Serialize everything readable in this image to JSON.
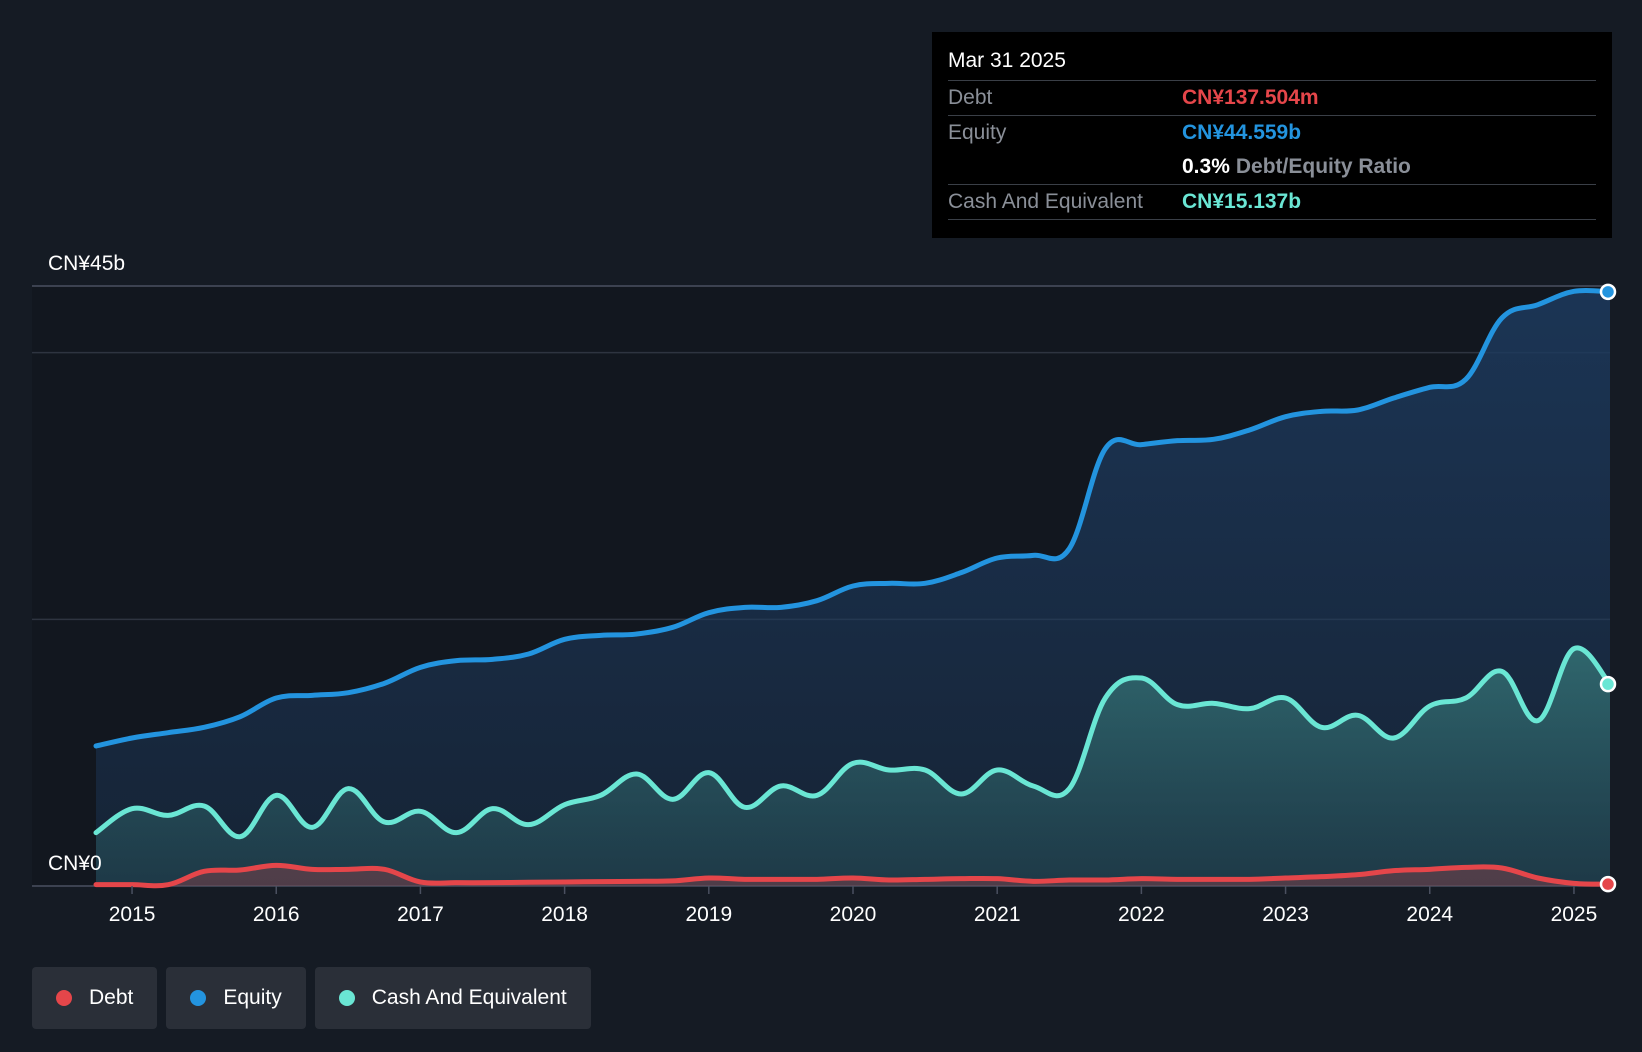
{
  "colors": {
    "background": "#151b24",
    "debt": "#e5464a",
    "equity": "#2394df",
    "cash": "#6ae6d4",
    "grid": "#2e3440"
  },
  "tooltip": {
    "date": "Mar 31 2025",
    "debt_label": "Debt",
    "debt_value": "CN¥137.504m",
    "equity_label": "Equity",
    "equity_value": "CN¥44.559b",
    "ratio_value": "0.3%",
    "ratio_label": "Debt/Equity Ratio",
    "cash_label": "Cash And Equivalent",
    "cash_value": "CN¥15.137b"
  },
  "legend": {
    "debt": "Debt",
    "equity": "Equity",
    "cash": "Cash And Equivalent"
  },
  "chart_data": {
    "type": "area",
    "title": "",
    "xlabel": "",
    "ylabel": "",
    "y_top_label": "CN¥45b",
    "y_bottom_label": "CN¥0",
    "ylim": [
      0,
      45
    ],
    "xlim": [
      2014.75,
      2025.25
    ],
    "x_ticks": [
      "2015",
      "2016",
      "2017",
      "2018",
      "2019",
      "2020",
      "2021",
      "2022",
      "2023",
      "2024",
      "2025"
    ],
    "legend_position": "bottom",
    "series": [
      {
        "name": "Equity",
        "points": [
          [
            2014.75,
            10.5
          ],
          [
            2015.0,
            11.1
          ],
          [
            2015.25,
            11.5
          ],
          [
            2015.5,
            11.9
          ],
          [
            2015.75,
            12.7
          ],
          [
            2016.0,
            14.1
          ],
          [
            2016.25,
            14.3
          ],
          [
            2016.5,
            14.5
          ],
          [
            2016.75,
            15.2
          ],
          [
            2017.0,
            16.4
          ],
          [
            2017.25,
            16.9
          ],
          [
            2017.5,
            17.0
          ],
          [
            2017.75,
            17.4
          ],
          [
            2018.0,
            18.5
          ],
          [
            2018.25,
            18.8
          ],
          [
            2018.5,
            18.9
          ],
          [
            2018.75,
            19.4
          ],
          [
            2019.0,
            20.5
          ],
          [
            2019.25,
            20.9
          ],
          [
            2019.5,
            20.9
          ],
          [
            2019.75,
            21.4
          ],
          [
            2020.0,
            22.5
          ],
          [
            2020.25,
            22.7
          ],
          [
            2020.5,
            22.7
          ],
          [
            2020.75,
            23.5
          ],
          [
            2021.0,
            24.6
          ],
          [
            2021.25,
            24.8
          ],
          [
            2021.5,
            25.3
          ],
          [
            2021.75,
            32.8
          ],
          [
            2022.0,
            33.1
          ],
          [
            2022.25,
            33.4
          ],
          [
            2022.5,
            33.5
          ],
          [
            2022.75,
            34.2
          ],
          [
            2023.0,
            35.2
          ],
          [
            2023.25,
            35.6
          ],
          [
            2023.5,
            35.7
          ],
          [
            2023.75,
            36.6
          ],
          [
            2024.0,
            37.4
          ],
          [
            2024.25,
            38.0
          ],
          [
            2024.5,
            42.6
          ],
          [
            2024.75,
            43.6
          ],
          [
            2025.0,
            44.6
          ],
          [
            2025.25,
            44.56
          ]
        ]
      },
      {
        "name": "Cash And Equivalent",
        "points": [
          [
            2014.75,
            4.0
          ],
          [
            2015.0,
            5.8
          ],
          [
            2015.25,
            5.3
          ],
          [
            2015.5,
            6.0
          ],
          [
            2015.75,
            3.7
          ],
          [
            2016.0,
            6.8
          ],
          [
            2016.25,
            4.4
          ],
          [
            2016.5,
            7.3
          ],
          [
            2016.75,
            4.8
          ],
          [
            2017.0,
            5.6
          ],
          [
            2017.25,
            4.0
          ],
          [
            2017.5,
            5.8
          ],
          [
            2017.75,
            4.6
          ],
          [
            2018.0,
            6.1
          ],
          [
            2018.25,
            6.8
          ],
          [
            2018.5,
            8.4
          ],
          [
            2018.75,
            6.5
          ],
          [
            2019.0,
            8.5
          ],
          [
            2019.25,
            5.9
          ],
          [
            2019.5,
            7.5
          ],
          [
            2019.75,
            6.8
          ],
          [
            2020.0,
            9.2
          ],
          [
            2020.25,
            8.7
          ],
          [
            2020.5,
            8.7
          ],
          [
            2020.75,
            6.9
          ],
          [
            2021.0,
            8.7
          ],
          [
            2021.25,
            7.5
          ],
          [
            2021.5,
            7.3
          ],
          [
            2021.75,
            14.1
          ],
          [
            2022.0,
            15.6
          ],
          [
            2022.25,
            13.6
          ],
          [
            2022.5,
            13.7
          ],
          [
            2022.75,
            13.3
          ],
          [
            2023.0,
            14.1
          ],
          [
            2023.25,
            11.9
          ],
          [
            2023.5,
            12.8
          ],
          [
            2023.75,
            11.1
          ],
          [
            2024.0,
            13.5
          ],
          [
            2024.25,
            14.1
          ],
          [
            2024.5,
            16.1
          ],
          [
            2024.75,
            12.4
          ],
          [
            2025.0,
            17.8
          ],
          [
            2025.25,
            15.14
          ]
        ]
      },
      {
        "name": "Debt",
        "points": [
          [
            2014.75,
            0.1
          ],
          [
            2015.0,
            0.1
          ],
          [
            2015.25,
            0.1
          ],
          [
            2015.5,
            1.1
          ],
          [
            2015.75,
            1.2
          ],
          [
            2016.0,
            1.55
          ],
          [
            2016.25,
            1.25
          ],
          [
            2016.5,
            1.25
          ],
          [
            2016.75,
            1.25
          ],
          [
            2017.0,
            0.3
          ],
          [
            2017.25,
            0.25
          ],
          [
            2017.5,
            0.25
          ],
          [
            2017.75,
            0.28
          ],
          [
            2018.0,
            0.3
          ],
          [
            2018.25,
            0.33
          ],
          [
            2018.5,
            0.35
          ],
          [
            2018.75,
            0.38
          ],
          [
            2019.0,
            0.6
          ],
          [
            2019.25,
            0.5
          ],
          [
            2019.5,
            0.5
          ],
          [
            2019.75,
            0.5
          ],
          [
            2020.0,
            0.6
          ],
          [
            2020.25,
            0.45
          ],
          [
            2020.5,
            0.5
          ],
          [
            2020.75,
            0.55
          ],
          [
            2021.0,
            0.55
          ],
          [
            2021.25,
            0.35
          ],
          [
            2021.5,
            0.45
          ],
          [
            2021.75,
            0.45
          ],
          [
            2022.0,
            0.55
          ],
          [
            2022.25,
            0.5
          ],
          [
            2022.5,
            0.5
          ],
          [
            2022.75,
            0.5
          ],
          [
            2023.0,
            0.6
          ],
          [
            2023.25,
            0.7
          ],
          [
            2023.5,
            0.85
          ],
          [
            2023.75,
            1.15
          ],
          [
            2024.0,
            1.25
          ],
          [
            2024.25,
            1.4
          ],
          [
            2024.5,
            1.35
          ],
          [
            2024.75,
            0.6
          ],
          [
            2025.0,
            0.2
          ],
          [
            2025.25,
            0.14
          ]
        ]
      }
    ]
  }
}
